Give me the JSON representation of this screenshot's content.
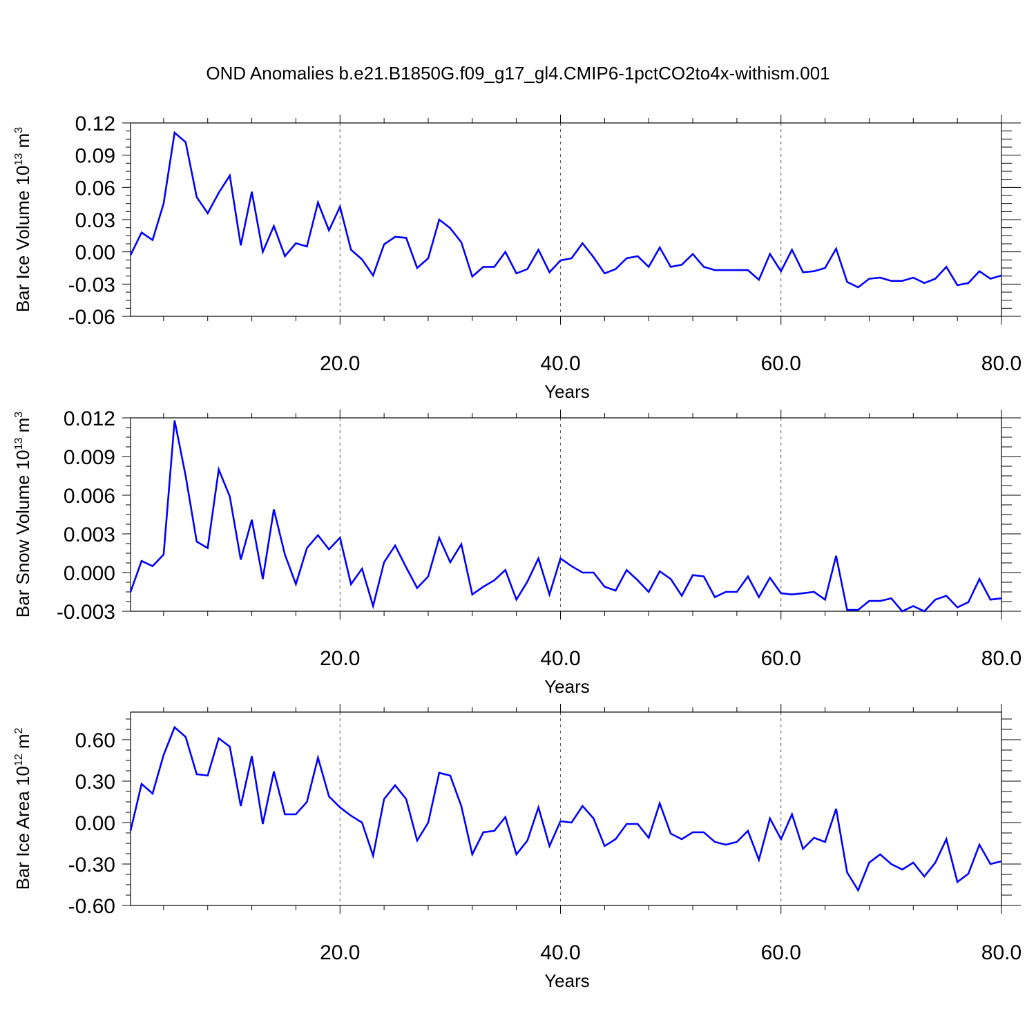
{
  "chart_data": {
    "title": "OND Anomalies b.e21.B1850G.f09_g17_gl4.CMIP6-1pctCO2to4x-withism.001",
    "series_color": "#0000ff",
    "panels": [
      {
        "type": "line",
        "ylabel": "Bar Ice Volume 10",
        "ylabel_exp": "13",
        "ylabel_unit": "m",
        "ylabel_unit_exp": "3",
        "xlabel": "Years",
        "xlim": [
          1,
          80
        ],
        "ylim": [
          -0.06,
          0.12
        ],
        "x_ticks": [
          "20.0",
          "40.0",
          "60.0",
          "80.0"
        ],
        "y_ticks": [
          "0.12",
          "0.09",
          "0.06",
          "0.03",
          "0.00",
          "-0.03",
          "-0.06"
        ],
        "grid": "dashed vertical at 20, 40, 60",
        "x": [
          1,
          2,
          3,
          4,
          5,
          6,
          7,
          8,
          9,
          10,
          11,
          12,
          13,
          14,
          15,
          16,
          17,
          18,
          19,
          20,
          21,
          22,
          23,
          24,
          25,
          26,
          27,
          28,
          29,
          30,
          31,
          32,
          33,
          34,
          35,
          36,
          37,
          38,
          39,
          40,
          41,
          42,
          43,
          44,
          45,
          46,
          47,
          48,
          49,
          50,
          51,
          52,
          53,
          54,
          55,
          56,
          57,
          58,
          59,
          60,
          61,
          62,
          63,
          64,
          65,
          66,
          67,
          68,
          69,
          70,
          71,
          72,
          73,
          74,
          75,
          76,
          77,
          78,
          79,
          80
        ],
        "values": [
          -0.003,
          0.018,
          0.011,
          0.045,
          0.111,
          0.102,
          0.051,
          0.036,
          0.055,
          0.071,
          0.006,
          0.056,
          0.0,
          0.024,
          -0.004,
          0.008,
          0.005,
          0.046,
          0.02,
          0.042,
          0.002,
          -0.007,
          -0.022,
          0.007,
          0.014,
          0.013,
          -0.015,
          -0.006,
          0.03,
          0.022,
          0.009,
          -0.023,
          -0.014,
          -0.014,
          0.0,
          -0.02,
          -0.016,
          0.002,
          -0.019,
          -0.008,
          -0.006,
          0.008,
          -0.005,
          -0.02,
          -0.016,
          -0.006,
          -0.004,
          -0.014,
          0.004,
          -0.014,
          -0.012,
          -0.002,
          -0.014,
          -0.017,
          -0.017,
          -0.017,
          -0.017,
          -0.026,
          -0.002,
          -0.018,
          0.002,
          -0.019,
          -0.018,
          -0.015,
          0.003,
          -0.028,
          -0.033,
          -0.025,
          -0.024,
          -0.027,
          -0.027,
          -0.024,
          -0.029,
          -0.025,
          -0.014,
          -0.031,
          -0.029,
          -0.018,
          -0.025,
          -0.022
        ]
      },
      {
        "type": "line",
        "ylabel": "Bar Snow Volume 10",
        "ylabel_exp": "13",
        "ylabel_unit": "m",
        "ylabel_unit_exp": "3",
        "xlabel": "Years",
        "xlim": [
          1,
          80
        ],
        "ylim": [
          -0.003,
          0.012
        ],
        "x_ticks": [
          "20.0",
          "40.0",
          "60.0",
          "80.0"
        ],
        "y_ticks": [
          "0.012",
          "0.009",
          "0.006",
          "0.003",
          "0.000",
          "-0.003"
        ],
        "grid": "dashed vertical at 20, 40, 60",
        "x": [
          1,
          2,
          3,
          4,
          5,
          6,
          7,
          8,
          9,
          10,
          11,
          12,
          13,
          14,
          15,
          16,
          17,
          18,
          19,
          20,
          21,
          22,
          23,
          24,
          25,
          26,
          27,
          28,
          29,
          30,
          31,
          32,
          33,
          34,
          35,
          36,
          37,
          38,
          39,
          40,
          41,
          42,
          43,
          44,
          45,
          46,
          47,
          48,
          49,
          50,
          51,
          52,
          53,
          54,
          55,
          56,
          57,
          58,
          59,
          60,
          61,
          62,
          63,
          64,
          65,
          66,
          67,
          68,
          69,
          70,
          71,
          72,
          73,
          74,
          75,
          76,
          77,
          78,
          79,
          80
        ],
        "values": [
          -0.0015,
          0.0009,
          0.0005,
          0.0014,
          0.0118,
          0.0075,
          0.0024,
          0.0019,
          0.008,
          0.0059,
          0.001,
          0.0041,
          -0.0005,
          0.0049,
          0.0014,
          -0.0009,
          0.0019,
          0.0029,
          0.0018,
          0.0027,
          -0.0009,
          0.0003,
          -0.0026,
          0.0008,
          0.0021,
          0.0004,
          -0.0012,
          -0.0003,
          0.0027,
          0.0008,
          0.0022,
          -0.0017,
          -0.0011,
          -0.0006,
          0.0002,
          -0.0021,
          -0.0007,
          0.0011,
          -0.0017,
          0.0011,
          0.0005,
          0.0,
          0.0,
          -0.0011,
          -0.0014,
          0.0002,
          -0.0006,
          -0.0015,
          0.0001,
          -0.0005,
          -0.0018,
          -0.0002,
          -0.0003,
          -0.0019,
          -0.0015,
          -0.0015,
          -0.0003,
          -0.0019,
          -0.0004,
          -0.0016,
          -0.0017,
          -0.0016,
          -0.0015,
          -0.0021,
          0.0013,
          -0.0029,
          -0.0029,
          -0.0022,
          -0.0022,
          -0.002,
          -0.003,
          -0.0026,
          -0.003,
          -0.0021,
          -0.0018,
          -0.0027,
          -0.0023,
          -0.0005,
          -0.0021,
          -0.002
        ]
      },
      {
        "type": "line",
        "ylabel": "Bar Ice Area 10",
        "ylabel_exp": "12",
        "ylabel_unit": "m",
        "ylabel_unit_exp": "2",
        "xlabel": "Years",
        "xlim": [
          1,
          80
        ],
        "ylim": [
          -0.6,
          0.8
        ],
        "x_ticks": [
          "20.0",
          "40.0",
          "60.0",
          "80.0"
        ],
        "y_ticks": [
          "0.60",
          "0.30",
          "0.00",
          "-0.30",
          "-0.60"
        ],
        "grid": "dashed vertical at 20, 40, 60",
        "x": [
          1,
          2,
          3,
          4,
          5,
          6,
          7,
          8,
          9,
          10,
          11,
          12,
          13,
          14,
          15,
          16,
          17,
          18,
          19,
          20,
          21,
          22,
          23,
          24,
          25,
          26,
          27,
          28,
          29,
          30,
          31,
          32,
          33,
          34,
          35,
          36,
          37,
          38,
          39,
          40,
          41,
          42,
          43,
          44,
          45,
          46,
          47,
          48,
          49,
          50,
          51,
          52,
          53,
          54,
          55,
          56,
          57,
          58,
          59,
          60,
          61,
          62,
          63,
          64,
          65,
          66,
          67,
          68,
          69,
          70,
          71,
          72,
          73,
          74,
          75,
          76,
          77,
          78,
          79,
          80
        ],
        "values": [
          -0.06,
          0.28,
          0.21,
          0.49,
          0.69,
          0.62,
          0.35,
          0.34,
          0.61,
          0.55,
          0.12,
          0.48,
          -0.01,
          0.37,
          0.06,
          0.06,
          0.15,
          0.47,
          0.19,
          0.11,
          0.05,
          0.0,
          -0.24,
          0.17,
          0.27,
          0.17,
          -0.13,
          0.0,
          0.36,
          0.34,
          0.12,
          -0.23,
          -0.07,
          -0.06,
          0.04,
          -0.23,
          -0.13,
          0.11,
          -0.17,
          0.01,
          0.0,
          0.12,
          0.03,
          -0.17,
          -0.12,
          -0.01,
          -0.01,
          -0.11,
          0.14,
          -0.08,
          -0.12,
          -0.07,
          -0.07,
          -0.14,
          -0.16,
          -0.14,
          -0.06,
          -0.27,
          0.03,
          -0.12,
          0.06,
          -0.19,
          -0.11,
          -0.14,
          0.1,
          -0.36,
          -0.49,
          -0.29,
          -0.23,
          -0.3,
          -0.34,
          -0.29,
          -0.39,
          -0.29,
          -0.12,
          -0.43,
          -0.37,
          -0.16,
          -0.3,
          -0.28
        ]
      }
    ]
  }
}
